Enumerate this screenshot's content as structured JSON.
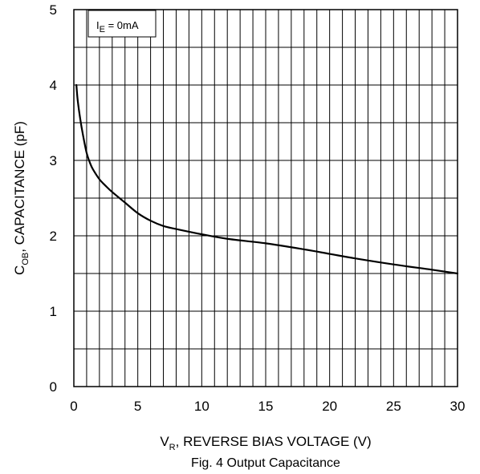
{
  "chart_data": {
    "type": "line",
    "caption": "Fig. 4  Output Capacitance",
    "xlabel": {
      "main": "V",
      "sub": "R",
      "rest": ", REVERSE BIAS VOLTAGE (V)"
    },
    "ylabel": {
      "main": "C",
      "sub": "OB",
      "rest": ", CAPACITANCE (pF)"
    },
    "annotation": {
      "main": "I",
      "sub": "E",
      "rest": " = 0mA"
    },
    "xlim": [
      0,
      30
    ],
    "ylim": [
      0,
      5
    ],
    "x_ticks": [
      "0",
      "5",
      "10",
      "15",
      "20",
      "25",
      "30"
    ],
    "y_ticks": [
      "0",
      "1",
      "2",
      "3",
      "4",
      "5"
    ],
    "grid": true,
    "x_grid_step": 1,
    "y_grid_step": 0.5,
    "series": [
      {
        "x": [
          0.2,
          0.3,
          0.5,
          0.7,
          1.0,
          1.3,
          1.5,
          2.0,
          2.5,
          3.0,
          4.0,
          5.0,
          6.0,
          7.0,
          8.0,
          10.0,
          12.0,
          15.0,
          18.0,
          20.0,
          22.0,
          25.0,
          28.0,
          30.0
        ],
        "y": [
          4.0,
          3.8,
          3.55,
          3.35,
          3.1,
          2.95,
          2.88,
          2.75,
          2.66,
          2.58,
          2.44,
          2.3,
          2.2,
          2.13,
          2.09,
          2.02,
          1.96,
          1.9,
          1.82,
          1.76,
          1.7,
          1.62,
          1.55,
          1.5
        ]
      }
    ]
  }
}
